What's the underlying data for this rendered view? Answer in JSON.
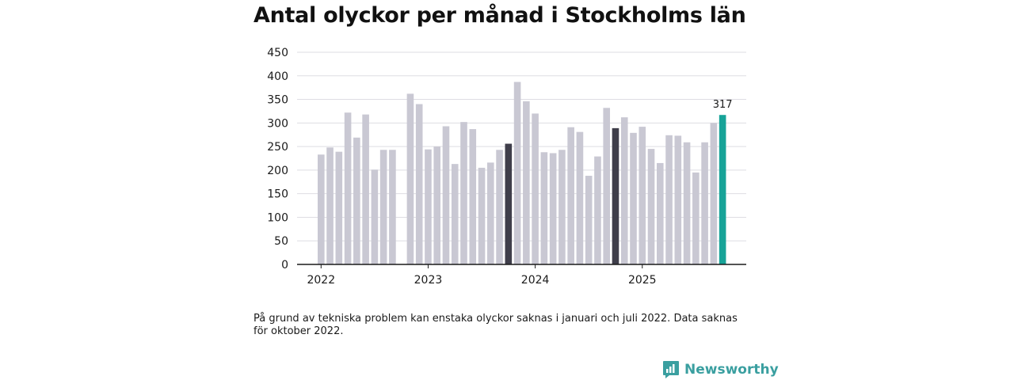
{
  "title": "Antal olyckor per månad i Stockholms län",
  "footnote": "På grund av tekniska problem kan enstaka olyckor saknas i januari och juli 2022. Data saknas för oktober 2022.",
  "brand": {
    "name": "Newsworthy"
  },
  "colors": {
    "default": "#c9c8d3",
    "highlight": "#3f3e4a",
    "latest": "#17a398",
    "brand": "#3a9fa0"
  },
  "chart_data": {
    "type": "bar",
    "title": "Antal olyckor per månad i Stockholms län",
    "xlabel": "",
    "ylabel": "",
    "ylim": [
      0,
      450
    ],
    "yticks": [
      0,
      50,
      100,
      150,
      200,
      250,
      300,
      350,
      400,
      450
    ],
    "grid": true,
    "year_ticks": [
      {
        "label": "2022",
        "month_index": 0
      },
      {
        "label": "2023",
        "month_index": 12
      },
      {
        "label": "2024",
        "month_index": 24
      },
      {
        "label": "2025",
        "month_index": 36
      }
    ],
    "categories": [
      "2022-01",
      "2022-02",
      "2022-03",
      "2022-04",
      "2022-05",
      "2022-06",
      "2022-07",
      "2022-08",
      "2022-09",
      "2022-10",
      "2022-11",
      "2022-12",
      "2023-01",
      "2023-02",
      "2023-03",
      "2023-04",
      "2023-05",
      "2023-06",
      "2023-07",
      "2023-08",
      "2023-09",
      "2023-10",
      "2023-11",
      "2023-12",
      "2024-01",
      "2024-02",
      "2024-03",
      "2024-04",
      "2024-05",
      "2024-06",
      "2024-07",
      "2024-08",
      "2024-09",
      "2024-10",
      "2024-11",
      "2024-12",
      "2025-01",
      "2025-02",
      "2025-03",
      "2025-04",
      "2025-05",
      "2025-06",
      "2025-07",
      "2025-08",
      "2025-09",
      "2025-10"
    ],
    "values": [
      233,
      248,
      239,
      322,
      269,
      318,
      201,
      243,
      243,
      null,
      362,
      340,
      244,
      250,
      293,
      213,
      302,
      287,
      205,
      216,
      243,
      256,
      387,
      346,
      320,
      238,
      236,
      243,
      291,
      281,
      188,
      229,
      332,
      289,
      312,
      279,
      292,
      245,
      215,
      274,
      273,
      259,
      195,
      259,
      300,
      317
    ],
    "highlight": [
      {
        "category": "2023-10",
        "color": "highlight"
      },
      {
        "category": "2024-10",
        "color": "highlight"
      },
      {
        "category": "2025-10",
        "color": "latest"
      }
    ],
    "annotations": [
      {
        "category": "2025-10",
        "text": "317"
      }
    ]
  }
}
